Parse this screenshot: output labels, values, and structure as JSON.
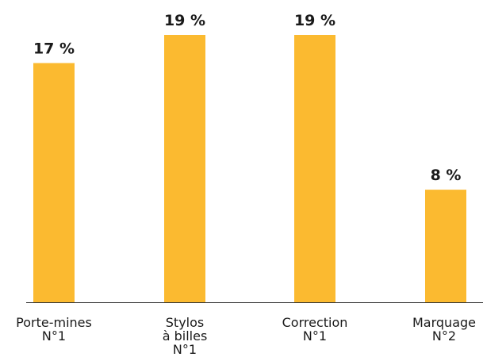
{
  "chart_data": {
    "type": "bar",
    "categories": [
      [
        "Porte-mines",
        "N°1"
      ],
      [
        "Stylos",
        "à billes",
        "N°1"
      ],
      [
        "Correction",
        "N°1"
      ],
      [
        "Marquage",
        "N°2"
      ]
    ],
    "values": [
      17,
      19,
      19,
      8
    ],
    "value_labels": [
      "17 %",
      "19 %",
      "19 %",
      "8 %"
    ],
    "ylim": [
      0,
      19
    ],
    "grid": false,
    "bar_color": "#FBBA30",
    "axis_color": "#333333",
    "text_color": "#1a1a1a"
  }
}
